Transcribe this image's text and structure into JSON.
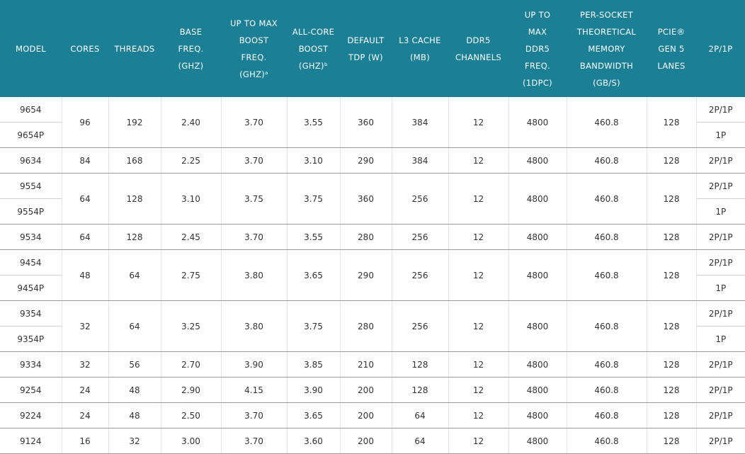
{
  "table": {
    "headers": [
      [
        "MODEL"
      ],
      [
        "CORES"
      ],
      [
        "THREADS"
      ],
      [
        "BASE",
        "FREQ.",
        "(GHZ)"
      ],
      [
        "UP TO MAX",
        "BOOST",
        "FREQ.",
        "(GHZ)ᵃ"
      ],
      [
        "ALL-CORE",
        "BOOST",
        "(GHZ)ᵇ"
      ],
      [
        "DEFAULT",
        "TDP (W)"
      ],
      [
        "L3 CACHE",
        "(MB)"
      ],
      [
        "DDR5",
        "CHANNELS"
      ],
      [
        "UP TO",
        "MAX",
        "DDR5",
        "FREQ.",
        "(1DPC)"
      ],
      [
        "PER-SOCKET",
        "THEORETICAL",
        "MEMORY",
        "BANDWIDTH",
        "(GB/S)"
      ],
      [
        "PCIE®",
        "GEN 5",
        "LANES"
      ],
      [
        "2P/1P"
      ]
    ],
    "groups": [
      {
        "models": [
          "9654",
          "9654P"
        ],
        "cells": [
          "96",
          "192",
          "2.40",
          "3.70",
          "3.55",
          "360",
          "384",
          "12",
          "4800",
          "460.8",
          "128"
        ],
        "platforms": [
          "2P/1P",
          "1P"
        ]
      },
      {
        "models": [
          "9634"
        ],
        "cells": [
          "84",
          "168",
          "2.25",
          "3.70",
          "3.10",
          "290",
          "384",
          "12",
          "4800",
          "460.8",
          "128"
        ],
        "platforms": [
          "2P/1P"
        ]
      },
      {
        "models": [
          "9554",
          "9554P"
        ],
        "cells": [
          "64",
          "128",
          "3.10",
          "3.75",
          "3.75",
          "360",
          "256",
          "12",
          "4800",
          "460.8",
          "128"
        ],
        "platforms": [
          "2P/1P",
          "1P"
        ]
      },
      {
        "models": [
          "9534"
        ],
        "cells": [
          "64",
          "128",
          "2.45",
          "3.70",
          "3.55",
          "280",
          "256",
          "12",
          "4800",
          "460.8",
          "128"
        ],
        "platforms": [
          "2P/1P"
        ]
      },
      {
        "models": [
          "9454",
          "9454P"
        ],
        "cells": [
          "48",
          "64",
          "2.75",
          "3.80",
          "3.65",
          "290",
          "256",
          "12",
          "4800",
          "460.8",
          "128"
        ],
        "platforms": [
          "2P/1P",
          "1P"
        ]
      },
      {
        "models": [
          "9354",
          "9354P"
        ],
        "cells": [
          "32",
          "64",
          "3.25",
          "3.80",
          "3.75",
          "280",
          "256",
          "12",
          "4800",
          "460.8",
          "128"
        ],
        "platforms": [
          "2P/1P",
          "1P"
        ]
      },
      {
        "models": [
          "9334"
        ],
        "cells": [
          "32",
          "56",
          "2.70",
          "3.90",
          "3.85",
          "210",
          "128",
          "12",
          "4800",
          "460.8",
          "128"
        ],
        "platforms": [
          "2P/1P"
        ]
      },
      {
        "models": [
          "9254"
        ],
        "cells": [
          "24",
          "48",
          "2.90",
          "4.15",
          "3.90",
          "200",
          "128",
          "12",
          "4800",
          "460.8",
          "128"
        ],
        "platforms": [
          "2P/1P"
        ]
      },
      {
        "models": [
          "9224"
        ],
        "cells": [
          "24",
          "48",
          "2.50",
          "3.70",
          "3.65",
          "200",
          "64",
          "12",
          "4800",
          "460.8",
          "128"
        ],
        "platforms": [
          "2P/1P"
        ]
      },
      {
        "models": [
          "9124"
        ],
        "cells": [
          "16",
          "32",
          "3.00",
          "3.70",
          "3.60",
          "200",
          "64",
          "12",
          "4800",
          "460.8",
          "128"
        ],
        "platforms": [
          "2P/1P"
        ]
      }
    ]
  }
}
